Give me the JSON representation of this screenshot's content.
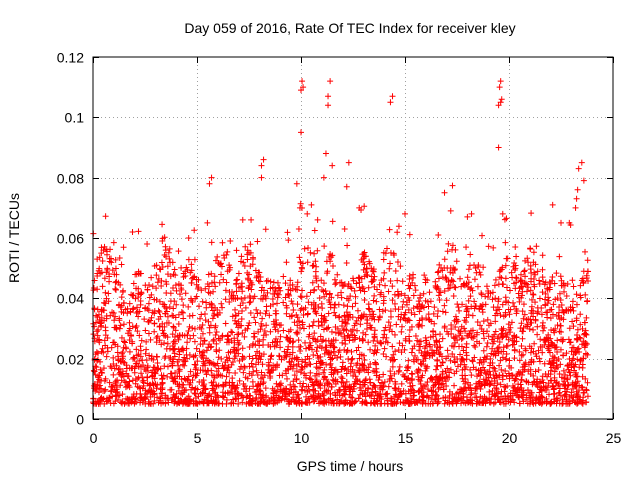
{
  "chart_data": {
    "type": "scatter",
    "title": "Day 059 of 2016, Rate Of TEC Index for receiver kley",
    "xlabel": "GPS time / hours",
    "ylabel": "ROTI / TECUs",
    "xlim": [
      0,
      25
    ],
    "ylim": [
      0,
      0.12
    ],
    "x_ticks": [
      "0",
      "5",
      "10",
      "15",
      "20",
      "25"
    ],
    "x_tick_values": [
      0,
      5,
      10,
      15,
      20,
      25
    ],
    "y_ticks": [
      "0",
      "0.02",
      "0.04",
      "0.06",
      "0.08",
      "0.1",
      "0.12"
    ],
    "y_tick_values": [
      0,
      0.02,
      0.04,
      0.06,
      0.08,
      0.1,
      0.12
    ],
    "grid": true,
    "marker": "+",
    "series": [
      {
        "name": "ROTI",
        "color": "#ff0000",
        "x": [
          0.2,
          0.4,
          0.5,
          1.9,
          2.6,
          3.5,
          4.6,
          5.5,
          5.6,
          5.7,
          6.6,
          7.2,
          7.6,
          8.1,
          8.1,
          8.2,
          9.8,
          9.9,
          9.95,
          10.0,
          10.0,
          10.05,
          10.1,
          10.3,
          10.5,
          10.8,
          11.1,
          11.2,
          11.3,
          11.3,
          11.4,
          11.5,
          12.1,
          12.2,
          12.3,
          12.8,
          14.3,
          14.4,
          15.0,
          16.6,
          16.9,
          17.2,
          18.0,
          18.2,
          19.5,
          19.5,
          19.55,
          19.6,
          19.6,
          19.65,
          19.7,
          20.3,
          22.1,
          22.5,
          22.9,
          23.2,
          23.25,
          23.3,
          23.35,
          23.5,
          23.6
        ],
        "y": [
          0.053,
          0.055,
          0.056,
          0.062,
          0.058,
          0.056,
          0.06,
          0.065,
          0.078,
          0.08,
          0.059,
          0.066,
          0.066,
          0.08,
          0.084,
          0.086,
          0.078,
          0.063,
          0.07,
          0.095,
          0.109,
          0.112,
          0.11,
          0.068,
          0.071,
          0.066,
          0.08,
          0.088,
          0.104,
          0.107,
          0.112,
          0.084,
          0.063,
          0.077,
          0.085,
          0.07,
          0.105,
          0.107,
          0.068,
          0.061,
          0.075,
          0.069,
          0.067,
          0.068,
          0.09,
          0.104,
          0.11,
          0.112,
          0.105,
          0.106,
          0.068,
          0.057,
          0.071,
          0.065,
          0.065,
          0.07,
          0.073,
          0.076,
          0.083,
          0.085,
          0.079
        ]
      }
    ],
    "density_band": {
      "note": "dense cloud of measurements across 0-24 h",
      "x_range": [
        0,
        23.8
      ],
      "typical_min": 0.005,
      "typical_max": 0.045
    }
  }
}
